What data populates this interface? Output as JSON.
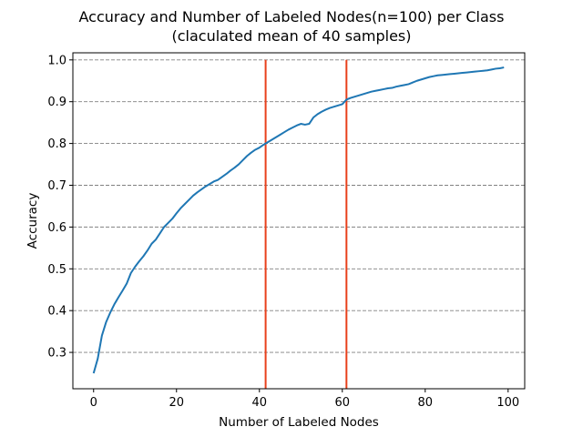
{
  "chart_data": {
    "type": "line",
    "title": "Accuracy and Number of Labeled Nodes(n=100) per Class",
    "subtitle": "(claculated mean of 40 samples)",
    "xlabel": "Number of Labeled Nodes",
    "ylabel": "Accuracy",
    "xlim": [
      -5,
      104
    ],
    "ylim": [
      0.213,
      1.017
    ],
    "xticks": [
      0,
      20,
      40,
      60,
      80,
      100
    ],
    "yticks": [
      0.3,
      0.4,
      0.5,
      0.6,
      0.7,
      0.8,
      0.9,
      1.0
    ],
    "grid": "horizontal dashed",
    "series": [
      {
        "color": "#1f77b4",
        "x": [
          0,
          1,
          2,
          3,
          4,
          5,
          6,
          7,
          8,
          9,
          10,
          11,
          12,
          13,
          14,
          15,
          16,
          17,
          18,
          19,
          20,
          21,
          22,
          23,
          24,
          25,
          26,
          27,
          28,
          29,
          30,
          31,
          32,
          33,
          34,
          35,
          36,
          37,
          38,
          39,
          40,
          41,
          42,
          43,
          44,
          45,
          46,
          47,
          48,
          49,
          50,
          51,
          52,
          53,
          54,
          55,
          56,
          57,
          58,
          59,
          60,
          61,
          62,
          63,
          64,
          65,
          66,
          67,
          68,
          69,
          70,
          71,
          72,
          73,
          74,
          75,
          76,
          77,
          78,
          79,
          80,
          81,
          82,
          83,
          84,
          85,
          86,
          87,
          88,
          89,
          90,
          91,
          92,
          93,
          94,
          95,
          96,
          97,
          98,
          99
        ],
        "values": [
          0.25,
          0.285,
          0.34,
          0.372,
          0.395,
          0.415,
          0.432,
          0.448,
          0.465,
          0.49,
          0.505,
          0.518,
          0.53,
          0.544,
          0.56,
          0.57,
          0.585,
          0.6,
          0.61,
          0.62,
          0.633,
          0.645,
          0.655,
          0.665,
          0.675,
          0.683,
          0.69,
          0.697,
          0.703,
          0.709,
          0.713,
          0.72,
          0.727,
          0.735,
          0.742,
          0.75,
          0.76,
          0.77,
          0.778,
          0.785,
          0.79,
          0.797,
          0.803,
          0.809,
          0.815,
          0.821,
          0.827,
          0.833,
          0.838,
          0.843,
          0.847,
          0.845,
          0.847,
          0.862,
          0.87,
          0.876,
          0.881,
          0.885,
          0.888,
          0.891,
          0.894,
          0.905,
          0.909,
          0.912,
          0.915,
          0.918,
          0.921,
          0.924,
          0.926,
          0.928,
          0.93,
          0.932,
          0.933,
          0.936,
          0.938,
          0.94,
          0.942,
          0.946,
          0.95,
          0.953,
          0.956,
          0.959,
          0.961,
          0.963,
          0.964,
          0.965,
          0.966,
          0.967,
          0.968,
          0.969,
          0.97,
          0.971,
          0.972,
          0.973,
          0.974,
          0.975,
          0.977,
          0.979,
          0.98,
          0.982
        ]
      }
    ],
    "vlines": [
      {
        "x": 41.5,
        "ymin": 0.213,
        "ymax": 1.0,
        "color": "#e8401c"
      },
      {
        "x": 61.0,
        "ymin": 0.213,
        "ymax": 1.0,
        "color": "#e8401c"
      }
    ]
  }
}
